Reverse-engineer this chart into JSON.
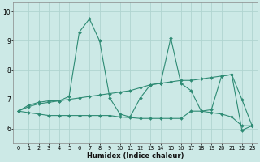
{
  "xlabel": "Humidex (Indice chaleur)",
  "x": [
    0,
    1,
    2,
    3,
    4,
    5,
    6,
    7,
    8,
    9,
    10,
    11,
    12,
    13,
    14,
    15,
    16,
    17,
    18,
    19,
    20,
    21,
    22,
    23
  ],
  "line1": [
    6.6,
    6.8,
    6.9,
    6.95,
    6.95,
    7.1,
    9.3,
    9.75,
    9.0,
    7.05,
    6.5,
    6.4,
    7.05,
    7.5,
    7.55,
    9.1,
    7.55,
    7.3,
    6.6,
    6.65,
    7.8,
    7.85,
    5.95,
    6.1
  ],
  "line2": [
    6.6,
    6.75,
    6.85,
    6.9,
    6.95,
    7.0,
    7.05,
    7.1,
    7.15,
    7.2,
    7.25,
    7.3,
    7.4,
    7.5,
    7.55,
    7.6,
    7.65,
    7.65,
    7.7,
    7.75,
    7.8,
    7.85,
    7.0,
    6.1
  ],
  "line3": [
    6.6,
    6.55,
    6.5,
    6.45,
    6.45,
    6.45,
    6.45,
    6.45,
    6.45,
    6.45,
    6.4,
    6.38,
    6.35,
    6.35,
    6.35,
    6.35,
    6.35,
    6.6,
    6.6,
    6.55,
    6.5,
    6.4,
    6.1,
    6.1
  ],
  "line_color": "#2e8b74",
  "bg_color": "#cce9e6",
  "grid_color": "#b0d4d0",
  "ylim": [
    5.5,
    10.3
  ],
  "xlim": [
    -0.5,
    23.5
  ],
  "yticks": [
    6,
    7,
    8,
    9,
    10
  ],
  "xticks": [
    0,
    1,
    2,
    3,
    4,
    5,
    6,
    7,
    8,
    9,
    10,
    11,
    12,
    13,
    14,
    15,
    16,
    17,
    18,
    19,
    20,
    21,
    22,
    23
  ]
}
